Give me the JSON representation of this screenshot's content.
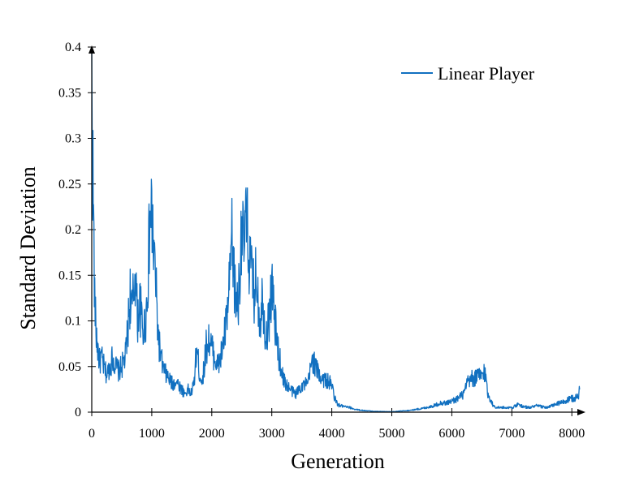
{
  "chart_data": {
    "type": "line",
    "title": "",
    "xlabel": "Generation",
    "ylabel": "Standard Deviation",
    "xlim": [
      0,
      8200
    ],
    "ylim": [
      0,
      0.4
    ],
    "xticks": [
      0,
      1000,
      2000,
      3000,
      4000,
      5000,
      6000,
      7000,
      8000
    ],
    "xtick_labels": [
      "0",
      "1000",
      "2000",
      "3000",
      "4000",
      "5000",
      "6000",
      "7000",
      "8000"
    ],
    "yticks": [
      0,
      0.05,
      0.1,
      0.15,
      0.2,
      0.25,
      0.3,
      0.35,
      0.4
    ],
    "ytick_labels": [
      "0",
      "0.05",
      "0.1",
      "0.15",
      "0.2",
      "0.25",
      "0.3",
      "0.35",
      "0.4"
    ],
    "grid": false,
    "legend": "top-right",
    "series": [
      {
        "name": "Linear Player",
        "color": "#1170c0",
        "x": [
          0,
          15,
          30,
          50,
          70,
          100,
          130,
          160,
          200,
          250,
          300,
          350,
          400,
          450,
          500,
          560,
          600,
          640,
          670,
          700,
          730,
          760,
          800,
          850,
          900,
          930,
          960,
          980,
          1000,
          1030,
          1060,
          1100,
          1150,
          1200,
          1250,
          1300,
          1350,
          1400,
          1450,
          1500,
          1550,
          1600,
          1650,
          1700,
          1750,
          1800,
          1850,
          1900,
          1950,
          2000,
          2050,
          2100,
          2150,
          2200,
          2250,
          2300,
          2330,
          2360,
          2400,
          2450,
          2480,
          2500,
          2530,
          2560,
          2600,
          2640,
          2700,
          2750,
          2800,
          2850,
          2900,
          2950,
          3000,
          3050,
          3100,
          3150,
          3200,
          3300,
          3400,
          3500,
          3600,
          3680,
          3720,
          3800,
          3900,
          4000,
          4050,
          4100,
          4200,
          4300,
          4400,
          4500,
          4700,
          5000,
          5300,
          5500,
          5700,
          5800,
          5900,
          6000,
          6100,
          6200,
          6250,
          6300,
          6400,
          6500,
          6550,
          6600,
          6700,
          6800,
          7000,
          7100,
          7200,
          7300,
          7400,
          7500,
          7600,
          7700,
          7800,
          7900,
          8000,
          8100,
          8130
        ],
        "y": [
          0.35,
          0.28,
          0.21,
          0.12,
          0.09,
          0.07,
          0.055,
          0.06,
          0.05,
          0.04,
          0.05,
          0.06,
          0.05,
          0.045,
          0.05,
          0.06,
          0.09,
          0.13,
          0.11,
          0.13,
          0.16,
          0.1,
          0.12,
          0.09,
          0.1,
          0.14,
          0.19,
          0.22,
          0.21,
          0.18,
          0.15,
          0.09,
          0.06,
          0.045,
          0.04,
          0.035,
          0.03,
          0.035,
          0.03,
          0.025,
          0.02,
          0.025,
          0.02,
          0.03,
          0.07,
          0.04,
          0.035,
          0.07,
          0.08,
          0.07,
          0.06,
          0.05,
          0.06,
          0.08,
          0.1,
          0.14,
          0.19,
          0.16,
          0.12,
          0.13,
          0.18,
          0.22,
          0.17,
          0.21,
          0.19,
          0.16,
          0.13,
          0.15,
          0.1,
          0.13,
          0.08,
          0.1,
          0.14,
          0.1,
          0.07,
          0.05,
          0.035,
          0.025,
          0.02,
          0.03,
          0.03,
          0.06,
          0.05,
          0.04,
          0.035,
          0.03,
          0.015,
          0.008,
          0.006,
          0.005,
          0.003,
          0.002,
          0.001,
          0.0005,
          0.002,
          0.004,
          0.007,
          0.01,
          0.01,
          0.012,
          0.015,
          0.02,
          0.03,
          0.035,
          0.038,
          0.04,
          0.045,
          0.02,
          0.006,
          0.005,
          0.005,
          0.008,
          0.006,
          0.005,
          0.007,
          0.006,
          0.005,
          0.008,
          0.01,
          0.012,
          0.015,
          0.016,
          0.025
        ]
      }
    ]
  }
}
